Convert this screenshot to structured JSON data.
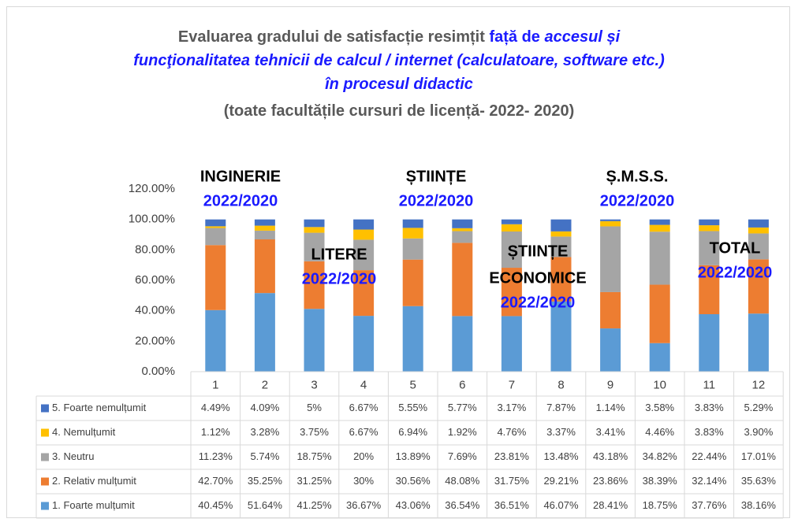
{
  "chart_data": {
    "type": "stacked_bar",
    "title": "Evaluarea gradului de satisfacție resimțit",
    "title_highlight": "față de",
    "title_italic": [
      "accesul și",
      "funcţionalitatea tehnicii de calcul / internet (calculatoare, software etc.)",
      "în procesul didactic"
    ],
    "subtitle": "(toate facultățile cursuri de licență- 2022- 2020)",
    "categories": [
      "1",
      "2",
      "3",
      "4",
      "5",
      "6",
      "7",
      "8",
      "9",
      "10",
      "11",
      "12"
    ],
    "series": [
      {
        "name": "1. Foarte mulțumit",
        "color": "#5b9bd5",
        "values": [
          40.45,
          51.64,
          41.25,
          36.67,
          43.06,
          36.54,
          36.51,
          46.07,
          28.41,
          18.75,
          37.76,
          38.16
        ],
        "value_labels": [
          "40.45%",
          "51.64%",
          "41.25%",
          "36.67%",
          "43.06%",
          "36.54%",
          "36.51%",
          "46.07%",
          "28.41%",
          "18.75%",
          "37.76%",
          "38.16%"
        ]
      },
      {
        "name": "2. Relativ mulțumit",
        "color": "#ed7d31",
        "values": [
          42.7,
          35.25,
          31.25,
          30,
          30.56,
          48.08,
          31.75,
          29.21,
          23.86,
          38.39,
          32.14,
          35.63
        ],
        "value_labels": [
          "42.70%",
          "35.25%",
          "31.25%",
          "30%",
          "30.56%",
          "48.08%",
          "31.75%",
          "29.21%",
          "23.86%",
          "38.39%",
          "32.14%",
          "35.63%"
        ]
      },
      {
        "name": "3. Neutru",
        "color": "#a5a5a5",
        "values": [
          11.23,
          5.74,
          18.75,
          20,
          13.89,
          7.69,
          23.81,
          13.48,
          43.18,
          34.82,
          22.44,
          17.01
        ],
        "value_labels": [
          "11.23%",
          "5.74%",
          "18.75%",
          "20%",
          "13.89%",
          "7.69%",
          "23.81%",
          "13.48%",
          "43.18%",
          "34.82%",
          "22.44%",
          "17.01%"
        ]
      },
      {
        "name": "4. Nemulțumit",
        "color": "#ffc000",
        "values": [
          1.12,
          3.28,
          3.75,
          6.67,
          6.94,
          1.92,
          4.76,
          3.37,
          3.41,
          4.46,
          3.83,
          3.9
        ],
        "value_labels": [
          "1.12%",
          "3.28%",
          "3.75%",
          "6.67%",
          "6.94%",
          "1.92%",
          "4.76%",
          "3.37%",
          "3.41%",
          "4.46%",
          "3.83%",
          "3.90%"
        ]
      },
      {
        "name": "5. Foarte nemulțumit",
        "color": "#4472c4",
        "values": [
          4.49,
          4.09,
          5,
          6.67,
          5.55,
          5.77,
          3.17,
          7.87,
          1.14,
          3.58,
          3.83,
          5.29
        ],
        "value_labels": [
          "4.49%",
          "4.09%",
          "5%",
          "6.67%",
          "5.55%",
          "5.77%",
          "3.17%",
          "7.87%",
          "1.14%",
          "3.58%",
          "3.83%",
          "5.29%"
        ]
      }
    ],
    "ylim": [
      0,
      120
    ],
    "yticks": [
      {
        "value": 0,
        "label": "0.00%"
      },
      {
        "value": 20,
        "label": "20.00%"
      },
      {
        "value": 40,
        "label": "40.00%"
      },
      {
        "value": 60,
        "label": "60.00%"
      },
      {
        "value": 80,
        "label": "80.00%"
      },
      {
        "value": 100,
        "label": "100.00%"
      },
      {
        "value": 120,
        "label": "120.00%"
      }
    ],
    "grid": false,
    "annotations": [
      {
        "lines": [
          "INGINERIE"
        ],
        "period": "2022/2020"
      },
      {
        "lines": [
          "LITERE"
        ],
        "period": "2022/2020"
      },
      {
        "lines": [
          "ȘTIINȚE"
        ],
        "period": "2022/2020"
      },
      {
        "lines": [
          "ȘTIINȚE",
          "ECONOMICE"
        ],
        "period": "2022/2020"
      },
      {
        "lines": [
          "Ș.M.S.S."
        ],
        "period": "2022/2020"
      },
      {
        "lines": [
          "TOTAL"
        ],
        "period": "2022/2020"
      }
    ]
  }
}
